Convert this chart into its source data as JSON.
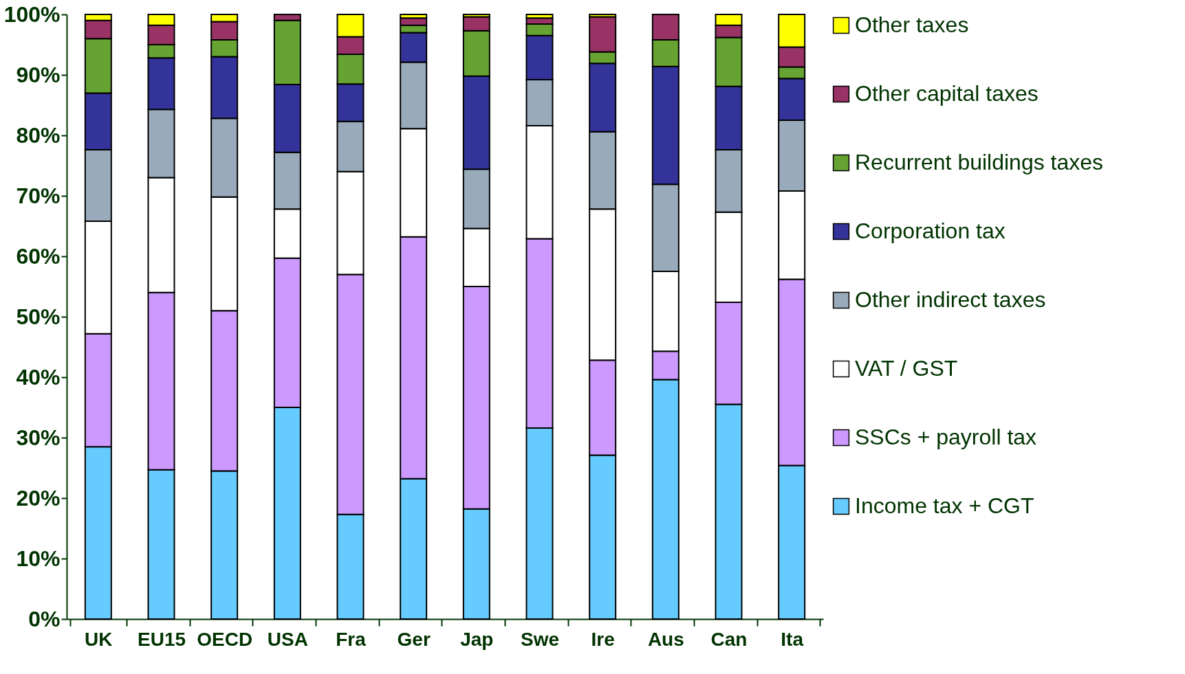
{
  "chart_data": {
    "type": "bar",
    "stacked": true,
    "legend": "right",
    "grid": false,
    "categories": [
      "UK",
      "EU15",
      "OECD",
      "USA",
      "Fra",
      "Ger",
      "Jap",
      "Swe",
      "Ire",
      "Aus",
      "Can",
      "Ita"
    ],
    "ylim": [
      0,
      100
    ],
    "yticks": [
      {
        "value": 0,
        "label": "0%"
      },
      {
        "value": 10,
        "label": "10%"
      },
      {
        "value": 20,
        "label": "20%"
      },
      {
        "value": 30,
        "label": "30%"
      },
      {
        "value": 40,
        "label": "40%"
      },
      {
        "value": 50,
        "label": "50%"
      },
      {
        "value": 60,
        "label": "60%"
      },
      {
        "value": 70,
        "label": "70%"
      },
      {
        "value": 80,
        "label": "80%"
      },
      {
        "value": 90,
        "label": "90%"
      },
      {
        "value": 100,
        "label": "100%"
      }
    ],
    "series": [
      {
        "name": "Income tax + CGT",
        "color": "#66ccff",
        "values": [
          28.5,
          24.7,
          24.5,
          35,
          17.3,
          23.2,
          18.2,
          31.6,
          27.1,
          39.6,
          35.5,
          25.4
        ]
      },
      {
        "name": "SSCs + payroll tax",
        "color": "#cc99ff",
        "values": [
          18.7,
          29.3,
          26.5,
          24.7,
          39.7,
          40,
          36.8,
          31.3,
          15.7,
          4.7,
          16.9,
          30.8
        ]
      },
      {
        "name": "VAT / GST",
        "color": "#ffffff",
        "values": [
          18.6,
          19,
          18.8,
          8.1,
          17,
          17.9,
          9.6,
          18.7,
          25,
          13.2,
          14.9,
          14.6
        ]
      },
      {
        "name": "Other indirect taxes",
        "color": "#99aabb",
        "values": [
          11.8,
          11.3,
          13,
          9.4,
          8.3,
          11,
          9.8,
          7.6,
          12.8,
          14.4,
          10.3,
          11.7
        ]
      },
      {
        "name": "Corporation tax",
        "color": "#333399",
        "values": [
          9.4,
          8.5,
          10.2,
          11.2,
          6.2,
          4.9,
          15.4,
          7.3,
          11.3,
          19.5,
          10.5,
          6.9
        ]
      },
      {
        "name": "Recurrent buildings taxes",
        "color": "#66a333",
        "values": [
          9,
          2.2,
          2.8,
          10.6,
          4.9,
          1.2,
          7.5,
          1.9,
          1.9,
          4.4,
          8.1,
          1.9
        ]
      },
      {
        "name": "Other capital taxes",
        "color": "#993366",
        "values": [
          3,
          3.2,
          3,
          1,
          2.9,
          1.2,
          2.3,
          1,
          5.8,
          4.2,
          2,
          3.3
        ]
      },
      {
        "name": "Other taxes",
        "color": "#ffff00",
        "values": [
          1,
          1.8,
          1.2,
          null,
          3.7,
          0.6,
          0.4,
          0.6,
          0.4,
          null,
          1.8,
          5.4
        ]
      }
    ]
  }
}
